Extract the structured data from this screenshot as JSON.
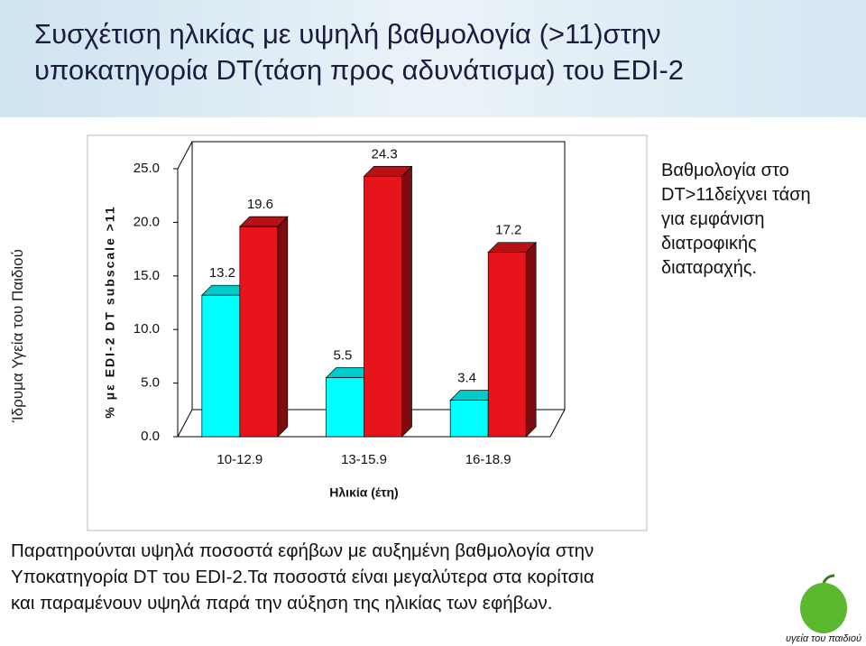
{
  "slide": {
    "title_lines": [
      "Συσχέτιση ηλικίας με  υψηλή βαθμολογία (>11)στην",
      "υποκατηγορία DT(τάση προς αδυνάτισμα) του EDI-2"
    ],
    "side_text": "Ίδρυμα Υγεία του Παιδιού",
    "annotation_lines": [
      "Βαθμολογία στο",
      "DT>11δείχνει τάση",
      "για εμφάνιση",
      "διατροφικής",
      "διαταραχής."
    ],
    "paragraph_lines": [
      "Παρατηρούνται υψηλά ποσοστά εφήβων με αυξημένη  βαθμολογία στην",
      "Υποκατηγορία DT του EDI-2.Τα ποσοστά είναι  μεγαλύτερα στα κορίτσια",
      "και παραμένουν υψηλά παρά την αύξηση της ηλικίας των εφήβων."
    ],
    "logo_text": "υγεία του παιδιού"
  },
  "chart_data": {
    "type": "bar",
    "ylabel": "% με EDI-2 DT subscale >11",
    "xlabel": "Ηλικία (έτη)",
    "categories": [
      "10-12.9",
      "13-15.9",
      "16-18.9"
    ],
    "series": [
      {
        "color": "#00ffff",
        "values": [
          13.2,
          5.5,
          3.4
        ]
      },
      {
        "color": "#e8141b",
        "values": [
          19.6,
          24.3,
          17.2
        ]
      }
    ],
    "ylim": [
      0,
      25
    ],
    "yticks": [
      {
        "value": 0,
        "label": "0.0"
      },
      {
        "value": 5,
        "label": "5.0"
      },
      {
        "value": 10,
        "label": "10.0"
      },
      {
        "value": 15,
        "label": "15.0"
      },
      {
        "value": 20,
        "label": "20.0"
      },
      {
        "value": 25,
        "label": "25.0"
      }
    ]
  }
}
